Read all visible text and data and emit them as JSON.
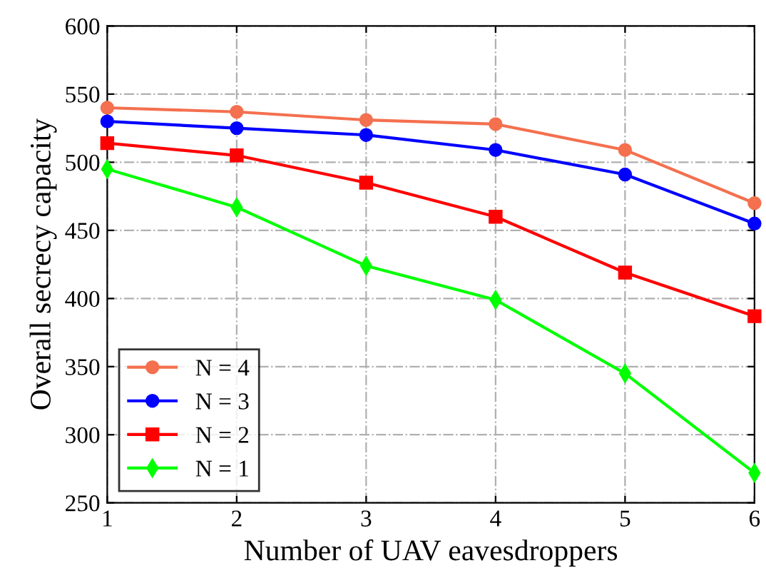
{
  "chart_data": {
    "type": "line",
    "xlabel": "Number of UAV eavesdroppers",
    "ylabel": "Overall secrecy capacity",
    "x": [
      1,
      2,
      3,
      4,
      5,
      6
    ],
    "series": [
      {
        "name": "N = 4",
        "color": "#f4704f",
        "marker": "circle",
        "values": [
          540,
          537,
          531,
          528,
          509,
          470
        ]
      },
      {
        "name": "N = 3",
        "color": "#0000ff",
        "marker": "circle",
        "values": [
          530,
          525,
          520,
          509,
          491,
          455
        ]
      },
      {
        "name": "N = 2",
        "color": "#ff0000",
        "marker": "square",
        "values": [
          514,
          505,
          485,
          460,
          419,
          387
        ]
      },
      {
        "name": "N = 1",
        "color": "#00ff00",
        "marker": "diamond",
        "values": [
          495,
          467,
          424,
          399,
          345,
          272
        ]
      }
    ],
    "xlim": [
      1,
      6
    ],
    "xticks": [
      1,
      2,
      3,
      4,
      5,
      6
    ],
    "ylim": [
      250,
      600
    ],
    "yticks": [
      250,
      300,
      350,
      400,
      450,
      500,
      550,
      600
    ],
    "grid": true,
    "legend": "bottom left",
    "line_style": "solid"
  }
}
